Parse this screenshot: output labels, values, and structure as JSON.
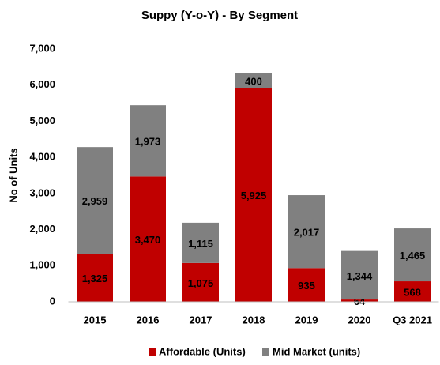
{
  "chart_data": {
    "type": "stacked_bar",
    "title": "Suppy (Y-o-Y) - By Segment",
    "y_label": "No of Units",
    "categories": [
      "2015",
      "2016",
      "2017",
      "2018",
      "2019",
      "2020",
      "Q3 2021"
    ],
    "series": [
      {
        "name": "Affordable (Units)",
        "color": "#c00000",
        "values": [
          1325,
          3470,
          1075,
          5925,
          935,
          64,
          568
        ],
        "value_labels": [
          "1,325",
          "3,470",
          "1,075",
          "5,925",
          "935",
          "64",
          "568"
        ]
      },
      {
        "name": "Mid Market (units)",
        "color": "#808080",
        "values": [
          2959,
          1973,
          1115,
          400,
          2017,
          1344,
          1465
        ],
        "value_labels": [
          "2,959",
          "1,973",
          "1,115",
          "400",
          "2,017",
          "1,344",
          "1,465"
        ]
      }
    ],
    "ylim": [
      0,
      7000
    ],
    "yticks": [
      0,
      {
        "value": 1000,
        "label": "1,000"
      },
      {
        "value": 2000,
        "label": "2,000"
      },
      {
        "value": 3000,
        "label": "3,000"
      },
      {
        "value": 4000,
        "label": "4,000"
      },
      {
        "value": 5000,
        "label": "5,000"
      },
      {
        "value": 6000,
        "label": "6,000"
      },
      {
        "value": 7000,
        "label": "7,000"
      }
    ],
    "grid": false,
    "legend": "bottom"
  }
}
